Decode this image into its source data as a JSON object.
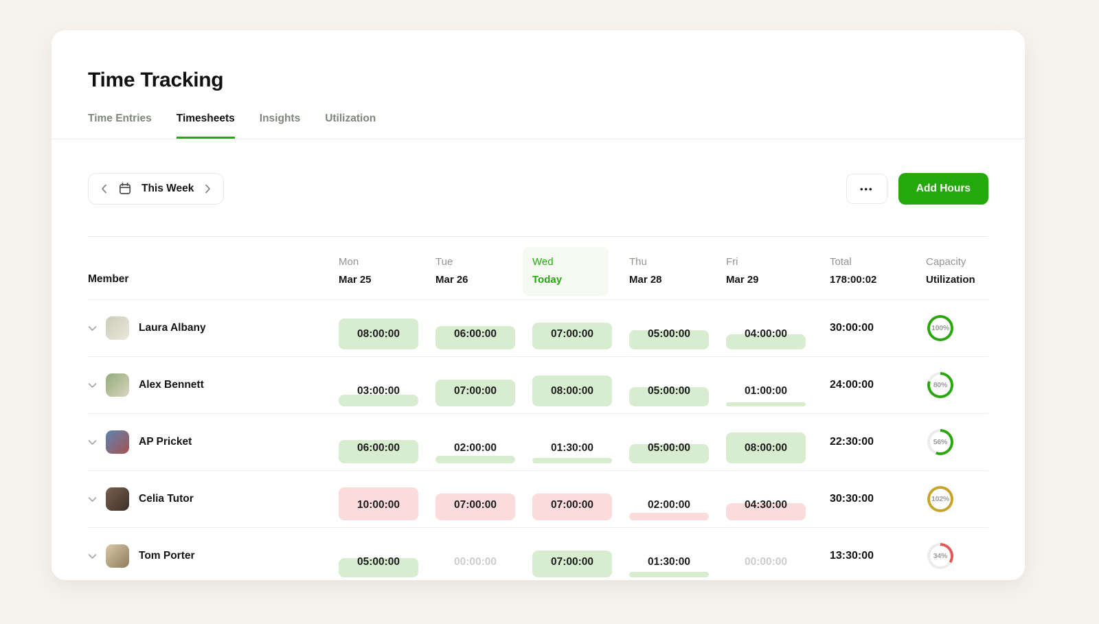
{
  "colors": {
    "accent_green": "#23a90c",
    "today_highlight": "#f7faf3",
    "fill_green": "#d8ecd0",
    "fill_red": "#fbdbdb",
    "ring_green": "#2aa70e",
    "ring_gold": "#c8a42c",
    "ring_red": "#e25757",
    "ring_track": "#ececec"
  },
  "header": {
    "title": "Time Tracking"
  },
  "tabs": [
    {
      "label": "Time Entries",
      "active": false
    },
    {
      "label": "Timesheets",
      "active": true
    },
    {
      "label": "Insights",
      "active": false
    },
    {
      "label": "Utilization",
      "active": false
    }
  ],
  "toolbar": {
    "week_selector": {
      "label": "This Week"
    },
    "more_label": "•••",
    "add_hours_label": "Add Hours"
  },
  "table": {
    "member_header": "Member",
    "day_columns": [
      {
        "day": "Mon",
        "date": "Mar 25",
        "today": false
      },
      {
        "day": "Tue",
        "date": "Mar 26",
        "today": false
      },
      {
        "day": "Wed",
        "date": "Today",
        "today": true
      },
      {
        "day": "Thu",
        "date": "Mar 28",
        "today": false
      },
      {
        "day": "Fri",
        "date": "Mar 29",
        "today": false
      }
    ],
    "total_header": {
      "label": "Total",
      "value": "178:00:02"
    },
    "capacity_header": {
      "line1": "Capacity",
      "line2": "Utilization"
    },
    "rows": [
      {
        "name": "Laura Albany",
        "avatar": [
          "#c9cdb8",
          "#ece7dd"
        ],
        "cells": [
          {
            "value": "08:00:00",
            "hours": 8,
            "tone": "green"
          },
          {
            "value": "06:00:00",
            "hours": 6,
            "tone": "green"
          },
          {
            "value": "07:00:00",
            "hours": 7,
            "tone": "green"
          },
          {
            "value": "05:00:00",
            "hours": 5,
            "tone": "green"
          },
          {
            "value": "04:00:00",
            "hours": 4,
            "tone": "green"
          }
        ],
        "total": "30:00:00",
        "utilization": {
          "label": "100%",
          "value": 100,
          "tone": "green"
        }
      },
      {
        "name": "Alex Bennett",
        "avatar": [
          "#8fae77",
          "#dcd4c4"
        ],
        "cells": [
          {
            "value": "03:00:00",
            "hours": 3,
            "tone": "green"
          },
          {
            "value": "07:00:00",
            "hours": 7,
            "tone": "green"
          },
          {
            "value": "08:00:00",
            "hours": 8,
            "tone": "green"
          },
          {
            "value": "05:00:00",
            "hours": 5,
            "tone": "green"
          },
          {
            "value": "01:00:00",
            "hours": 1,
            "tone": "green"
          }
        ],
        "total": "24:00:00",
        "utilization": {
          "label": "80%",
          "value": 80,
          "tone": "green"
        }
      },
      {
        "name": "AP Pricket",
        "avatar": [
          "#5b84b1",
          "#a65252"
        ],
        "cells": [
          {
            "value": "06:00:00",
            "hours": 6,
            "tone": "green"
          },
          {
            "value": "02:00:00",
            "hours": 2,
            "tone": "green"
          },
          {
            "value": "01:30:00",
            "hours": 1.5,
            "tone": "green"
          },
          {
            "value": "05:00:00",
            "hours": 5,
            "tone": "green"
          },
          {
            "value": "08:00:00",
            "hours": 8,
            "tone": "green"
          }
        ],
        "total": "22:30:00",
        "utilization": {
          "label": "56%",
          "value": 56,
          "tone": "green"
        }
      },
      {
        "name": "Celia Tutor",
        "avatar": [
          "#7a5f4e",
          "#3c3029"
        ],
        "cells": [
          {
            "value": "10:00:00",
            "hours": 10,
            "tone": "red"
          },
          {
            "value": "07:00:00",
            "hours": 7,
            "tone": "red"
          },
          {
            "value": "07:00:00",
            "hours": 7,
            "tone": "red"
          },
          {
            "value": "02:00:00",
            "hours": 2,
            "tone": "red"
          },
          {
            "value": "04:30:00",
            "hours": 4.5,
            "tone": "red"
          }
        ],
        "total": "30:30:00",
        "utilization": {
          "label": "102%",
          "value": 102,
          "tone": "gold"
        }
      },
      {
        "name": "Tom Porter",
        "avatar": [
          "#d9c9a8",
          "#8d7b5c"
        ],
        "cells": [
          {
            "value": "05:00:00",
            "hours": 5,
            "tone": "green"
          },
          {
            "value": "00:00:00",
            "hours": 0,
            "tone": "empty"
          },
          {
            "value": "07:00:00",
            "hours": 7,
            "tone": "green"
          },
          {
            "value": "01:30:00",
            "hours": 1.5,
            "tone": "green"
          },
          {
            "value": "00:00:00",
            "hours": 0,
            "tone": "empty"
          }
        ],
        "total": "13:30:00",
        "utilization": {
          "label": "34%",
          "value": 34,
          "tone": "red"
        }
      }
    ]
  }
}
